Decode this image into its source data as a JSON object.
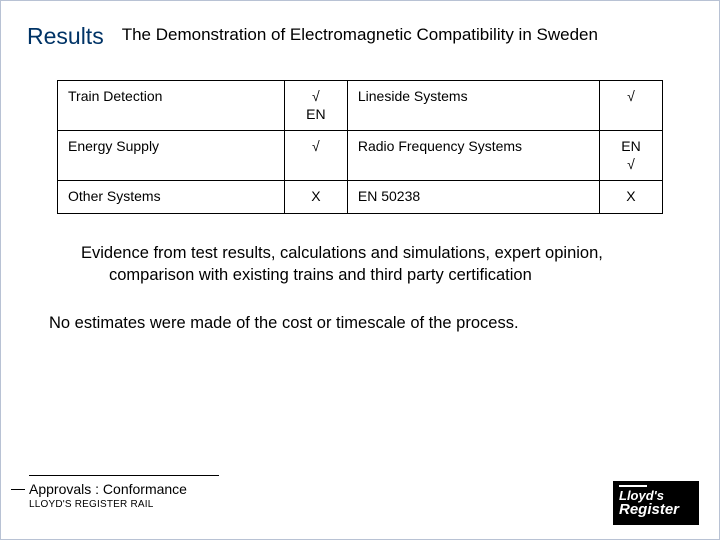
{
  "header": {
    "main": "Results",
    "sub": "The Demonstration of Electromagnetic Compatibility in Sweden"
  },
  "table": {
    "rows": [
      {
        "a": "Train Detection",
        "b": "√\nEN",
        "c": "Lineside Systems",
        "d": "√"
      },
      {
        "a": "Energy Supply",
        "b": "√",
        "c": "Radio Frequency Systems",
        "d": "EN\n√"
      },
      {
        "a": "Other Systems",
        "b": "X",
        "c": "EN 50238",
        "d": "X"
      }
    ],
    "border_color": "#000000",
    "cell_fontsize": 14
  },
  "body": {
    "p1": "Evidence from test results, calculations and simulations, expert opinion, comparison with existing trains and third party certification",
    "p2": "No estimates were made of the cost or timescale of the process."
  },
  "footer": {
    "line1": "Approvals : Conformance",
    "line2": "LLOYD'S REGISTER RAIL"
  },
  "logo": {
    "line1": "Lloyd's",
    "line2": "Register"
  },
  "colors": {
    "title": "#003366",
    "text": "#000000",
    "background": "#ffffff",
    "logo_bg": "#000000",
    "logo_fg": "#ffffff"
  }
}
